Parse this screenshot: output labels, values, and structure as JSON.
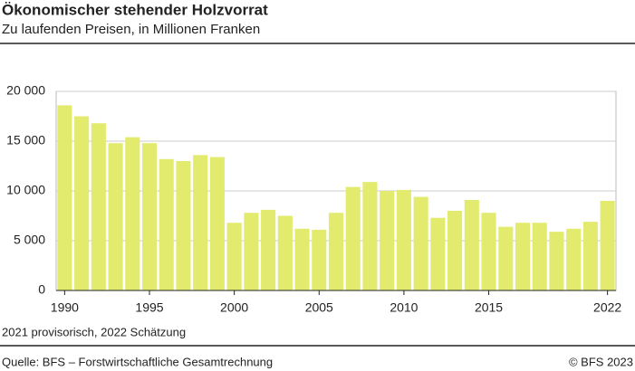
{
  "chart_data": {
    "type": "bar",
    "title": "Ökonomischer stehender Holzvorrat",
    "subtitle": "Zu laufenden Preisen, in Millionen Franken",
    "note": "2021 provisorisch, 2022 Schätzung",
    "source": "Quelle: BFS – Forstwirtschaftliche Gesamtrechnung",
    "copyright": "© BFS 2023",
    "categories": [
      "1990",
      null,
      null,
      null,
      null,
      "1995",
      null,
      null,
      null,
      null,
      "2000",
      null,
      null,
      null,
      null,
      "2005",
      null,
      null,
      null,
      null,
      "2010",
      null,
      null,
      null,
      null,
      "2015",
      null,
      null,
      null,
      null,
      null,
      null,
      "2022"
    ],
    "values": [
      18600,
      17500,
      16800,
      14800,
      15400,
      14800,
      13200,
      13000,
      13600,
      13400,
      6800,
      7800,
      8100,
      7500,
      6200,
      6100,
      7800,
      10400,
      10900,
      10000,
      10100,
      9400,
      7300,
      8000,
      9100,
      7800,
      6400,
      6800,
      6800,
      5900,
      6200,
      6900,
      9000
    ],
    "color": "#e3eb6e",
    "ylim": [
      0,
      20000
    ],
    "yticks": [
      0,
      {
        "value": 5000,
        "label": "5 000"
      },
      {
        "value": 10000,
        "label": "10 000"
      },
      {
        "value": 15000,
        "label": "15 000"
      },
      {
        "value": 20000,
        "label": "20 000"
      }
    ],
    "grid": true
  }
}
